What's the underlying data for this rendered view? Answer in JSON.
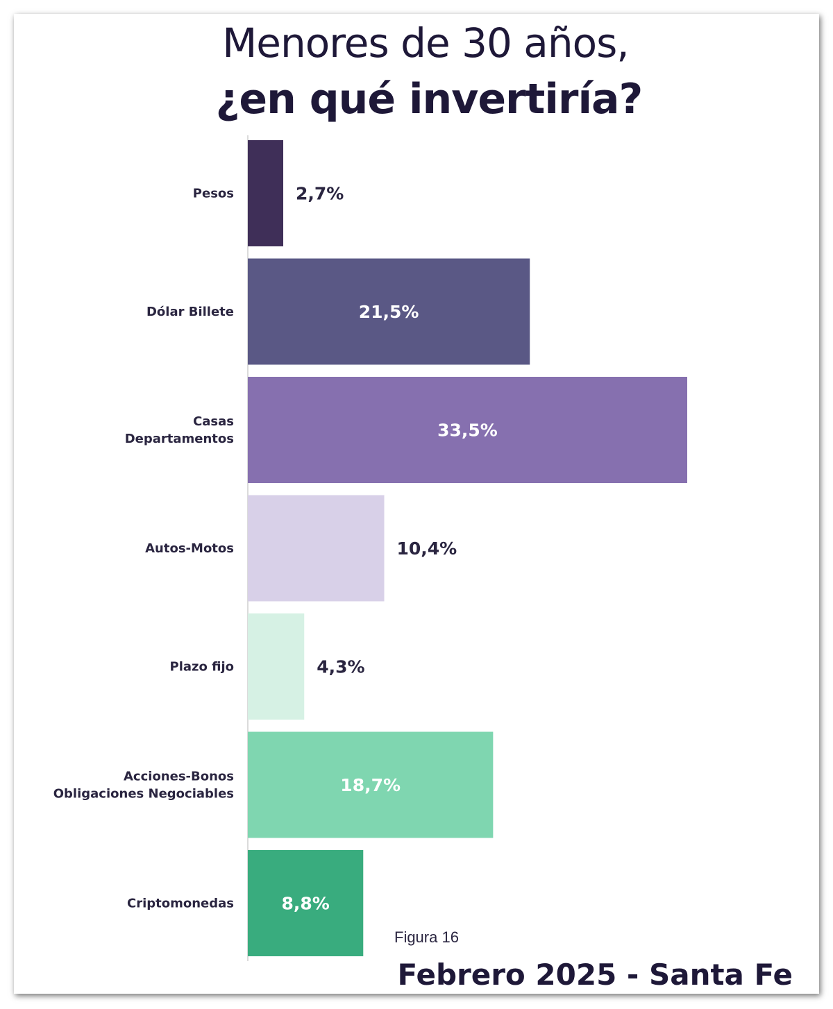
{
  "chart_data": {
    "type": "bar",
    "orientation": "horizontal",
    "title": "Menores de 30 años,",
    "subtitle": "¿en qué invertiría?",
    "categories": [
      [
        "Pesos"
      ],
      [
        "Dólar Billete"
      ],
      [
        "Casas",
        "Departamentos"
      ],
      [
        "Autos-Motos"
      ],
      [
        "Plazo fijo"
      ],
      [
        "Acciones-Bonos",
        "Obligaciones Negociables"
      ],
      [
        "Criptomonedas"
      ]
    ],
    "values": [
      2.7,
      21.5,
      33.5,
      10.4,
      4.3,
      18.7,
      8.8
    ],
    "value_labels": [
      "2,7%",
      "21,5%",
      "33,5%",
      "10,4%",
      "4,3%",
      "18,7%",
      "8,8%"
    ],
    "colors": [
      "#3f2f58",
      "#5a5885",
      "#8670af",
      "#d8d0e8",
      "#d6f1e4",
      "#7fd6b0",
      "#39ac7e"
    ],
    "label_inside": [
      false,
      true,
      true,
      false,
      false,
      true,
      true
    ],
    "xlabel": "",
    "ylabel": "",
    "xlim": [
      0,
      33.5
    ],
    "grid": false
  },
  "figure_label": "Figura 16",
  "footer": "Febrero 2025 - Santa Fe"
}
